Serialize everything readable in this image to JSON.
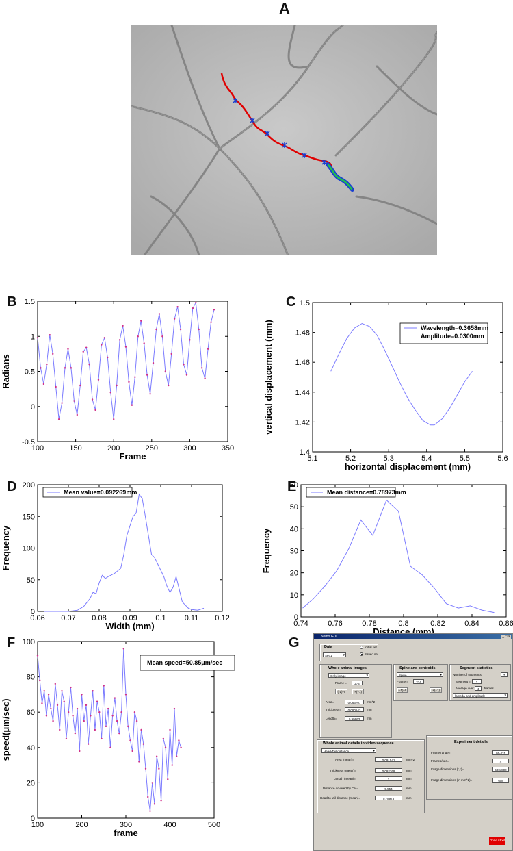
{
  "panels": {
    "A": "A",
    "B": "B",
    "C": "C",
    "D": "D",
    "E": "E",
    "F": "F",
    "G": "G"
  },
  "colors": {
    "trace": "#7b7bff",
    "marker": "#d0308a",
    "track_red": "#e00000",
    "track_blue": "#1a3fd1",
    "track_green": "#22c04a"
  },
  "chart_data": [
    {
      "id": "B",
      "type": "line",
      "xlabel": "Frame",
      "ylabel": "Radians",
      "xlim": [
        100,
        350
      ],
      "ylim": [
        -0.5,
        1.5
      ],
      "xticks": [
        "100",
        "150",
        "200",
        "250",
        "300",
        "350"
      ],
      "yticks": [
        "-0.5",
        "0",
        "0.5",
        "1",
        "1.5"
      ],
      "x": [
        100,
        104,
        108,
        112,
        116,
        120,
        124,
        128,
        132,
        136,
        140,
        144,
        148,
        152,
        156,
        160,
        164,
        168,
        172,
        176,
        180,
        184,
        188,
        192,
        196,
        200,
        204,
        208,
        212,
        216,
        220,
        224,
        228,
        232,
        236,
        240,
        244,
        248,
        252,
        256,
        260,
        264,
        268,
        272,
        276,
        280,
        284,
        288,
        292,
        296,
        300,
        304,
        308,
        312,
        316,
        320,
        324,
        328,
        332
      ],
      "y": [
        0.98,
        0.55,
        0.32,
        0.6,
        1.02,
        0.75,
        0.28,
        -0.18,
        0.05,
        0.55,
        0.82,
        0.55,
        0.08,
        -0.12,
        0.3,
        0.78,
        0.84,
        0.6,
        0.1,
        -0.05,
        0.38,
        0.88,
        0.98,
        0.7,
        0.2,
        -0.18,
        0.3,
        0.95,
        1.15,
        0.85,
        0.35,
        0.02,
        0.42,
        1.0,
        1.22,
        0.9,
        0.45,
        0.18,
        0.62,
        1.1,
        1.32,
        1.0,
        0.5,
        0.3,
        0.75,
        1.25,
        1.42,
        1.1,
        0.6,
        0.45,
        0.95,
        1.4,
        1.48,
        1.1,
        0.55,
        0.4,
        0.82,
        1.2,
        1.38
      ]
    },
    {
      "id": "C",
      "type": "line",
      "xlabel": "horizontal displacement (mm)",
      "ylabel": "vertical displacement (mm)",
      "xlim": [
        5.1,
        5.6
      ],
      "ylim": [
        1.4,
        1.5
      ],
      "xticks": [
        "5.1",
        "5.2",
        "5.3",
        "5.4",
        "5.5",
        "5.6"
      ],
      "yticks": [
        "1.4",
        "1.42",
        "1.44",
        "1.46",
        "1.48",
        "1.5"
      ],
      "legend": [
        "Wavelength=0.3658mm",
        "Amplitude=0.0300mm"
      ],
      "x": [
        5.148,
        5.17,
        5.19,
        5.21,
        5.23,
        5.25,
        5.27,
        5.29,
        5.31,
        5.33,
        5.35,
        5.37,
        5.39,
        5.41,
        5.42,
        5.44,
        5.46,
        5.48,
        5.5,
        5.52
      ],
      "y": [
        1.454,
        1.466,
        1.476,
        1.483,
        1.486,
        1.484,
        1.478,
        1.468,
        1.457,
        1.446,
        1.436,
        1.428,
        1.421,
        1.418,
        1.418,
        1.422,
        1.429,
        1.438,
        1.447,
        1.454
      ]
    },
    {
      "id": "D",
      "type": "line",
      "xlabel": "Width (mm)",
      "ylabel": "Frequency",
      "xlim": [
        0.06,
        0.12
      ],
      "ylim": [
        0,
        200
      ],
      "xticks": [
        "0.06",
        "0.07",
        "0.08",
        "0.09",
        "0.1",
        "0.11",
        "0.12"
      ],
      "yticks": [
        "0",
        "50",
        "100",
        "150",
        "200"
      ],
      "legend": [
        "Mean value=0.092269mm"
      ],
      "x": [
        0.062,
        0.066,
        0.07,
        0.073,
        0.075,
        0.077,
        0.078,
        0.079,
        0.08,
        0.081,
        0.082,
        0.083,
        0.085,
        0.087,
        0.088,
        0.089,
        0.09,
        0.091,
        0.092,
        0.093,
        0.094,
        0.095,
        0.096,
        0.097,
        0.098,
        0.099,
        0.1,
        0.101,
        0.102,
        0.103,
        0.104,
        0.105,
        0.106,
        0.107,
        0.108,
        0.109,
        0.11,
        0.112,
        0.114
      ],
      "y": [
        0,
        0,
        0,
        2,
        8,
        20,
        30,
        28,
        45,
        57,
        52,
        55,
        60,
        68,
        90,
        120,
        135,
        150,
        155,
        185,
        178,
        150,
        120,
        90,
        85,
        75,
        65,
        55,
        40,
        30,
        38,
        55,
        35,
        15,
        10,
        5,
        3,
        2,
        5
      ]
    },
    {
      "id": "E",
      "type": "line",
      "xlabel": "Distance (mm)",
      "ylabel": "Frequency",
      "xlim": [
        0.74,
        0.86
      ],
      "ylim": [
        0,
        60
      ],
      "xticks": [
        "0.74",
        "0.76",
        "0.78",
        "0.8",
        "0.82",
        "0.84",
        "0.86"
      ],
      "yticks": [
        "0",
        "10",
        "20",
        "30",
        "40",
        "50",
        "60"
      ],
      "legend": [
        "Mean distance=0.78973mm"
      ],
      "x": [
        0.741,
        0.747,
        0.754,
        0.761,
        0.768,
        0.775,
        0.782,
        0.79,
        0.797,
        0.804,
        0.811,
        0.818,
        0.825,
        0.832,
        0.839,
        0.846,
        0.853
      ],
      "y": [
        4,
        8,
        14,
        21,
        31,
        44,
        37,
        53,
        48,
        23,
        19,
        13,
        6,
        4,
        5,
        3,
        2
      ]
    },
    {
      "id": "F",
      "type": "line",
      "xlabel": "frame",
      "ylabel": "speed(μm/sec)",
      "xlim": [
        100,
        500
      ],
      "ylim": [
        0,
        100
      ],
      "xticks": [
        "100",
        "200",
        "300",
        "400",
        "500"
      ],
      "yticks": [
        "0",
        "20",
        "40",
        "60",
        "80",
        "100"
      ],
      "legend": [
        "Mean speed=50.85μm/sec"
      ],
      "x": [
        100,
        105,
        110,
        115,
        120,
        125,
        130,
        135,
        140,
        145,
        150,
        155,
        160,
        165,
        170,
        175,
        180,
        185,
        190,
        195,
        200,
        205,
        210,
        215,
        220,
        225,
        230,
        235,
        240,
        245,
        250,
        255,
        260,
        265,
        270,
        275,
        280,
        285,
        290,
        295,
        300,
        305,
        310,
        315,
        320,
        325,
        330,
        335,
        340,
        345,
        350,
        355,
        360,
        365,
        370,
        375,
        380,
        385,
        390,
        395,
        400,
        405,
        410,
        415,
        420,
        425
      ],
      "y": [
        92,
        78,
        65,
        72,
        58,
        70,
        62,
        55,
        76,
        64,
        50,
        72,
        66,
        45,
        60,
        74,
        58,
        48,
        62,
        38,
        70,
        55,
        64,
        42,
        58,
        72,
        50,
        66,
        60,
        45,
        75,
        52,
        62,
        40,
        58,
        68,
        55,
        48,
        60,
        96,
        70,
        52,
        44,
        38,
        60,
        55,
        32,
        50,
        42,
        28,
        12,
        4,
        20,
        8,
        35,
        28,
        10,
        45,
        40,
        22,
        50,
        30,
        62,
        35,
        44,
        40
      ]
    }
  ],
  "gui": {
    "window_title": "Nemo GUI",
    "controls": "_ □ ×",
    "data": {
      "title": "Data",
      "select": "Set 1",
      "radio_initial": "Initial set",
      "radio_saved": "Saved set"
    },
    "whole_animal_images": {
      "title": "Whole animal images",
      "select": "Only image",
      "frame_label": "Frame =",
      "frame_value": "274",
      "btn_prev": "(-1)+t",
      "btn_next": "t+(+1)",
      "area_label": "Area=",
      "area_value": "0.066707",
      "area_unit": "mm^2",
      "thickness_label": "Thickness=",
      "thickness_value": "0.090643",
      "thickness_unit": "mm",
      "length_label": "Length=",
      "length_value": "0.99863",
      "length_unit": "mm"
    },
    "spine": {
      "title": "Spine and centroids",
      "select": "Spine",
      "frame_label": "Frame =",
      "frame_value": "274",
      "btn_prev": "(-1)+t",
      "btn_next": "t+(+1)"
    },
    "segment": {
      "title": "Segment statistics",
      "num_label": "Number of segments",
      "num_value": "7",
      "seg_label": "Segment =",
      "seg_value": "2",
      "avg_label": "Average over",
      "avg_value": "4",
      "avg_unit": "frames",
      "select": "lambda and amplitude"
    },
    "video": {
      "title": "Whole animal details in video sequence",
      "select": "Head-Tail distance",
      "area_label": "Area (mean)=",
      "area_value": "0.091541",
      "area_unit": "mm^2",
      "thickness_label": "Thickness (mean)=",
      "thickness_value": "0.092269",
      "thickness_unit": "mm",
      "length_label": "Length (mean)=",
      "length_value": "1",
      "length_unit": "mm",
      "cm_label": "Distance covered by CM=",
      "cm_value": "5.554",
      "cm_unit": "mm",
      "ht_label": "Head to tail distance (mean)=",
      "ht_value": "0.78973",
      "ht_unit": "mm"
    },
    "experiment": {
      "title": "Experiment details",
      "range_label": "Frame range=",
      "range_value": "95-431",
      "fps_label": "Frames/sec=",
      "fps_value": "4",
      "dim_label": "Image dimensions (r,c)=",
      "dim_value": "600x800",
      "mm_label": "Image dimensions (in mm^2)=",
      "mm_value": "6x8"
    },
    "done_button": "Done / Exit"
  }
}
